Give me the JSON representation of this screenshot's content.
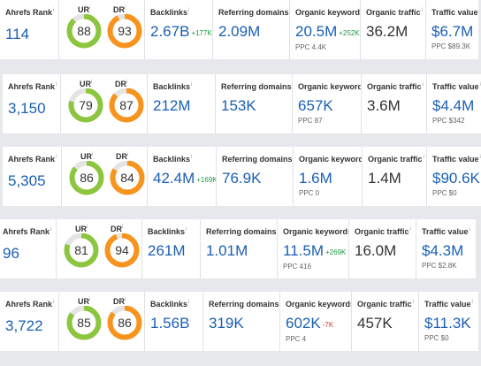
{
  "labels": {
    "ahrefs_rank": "Ahrefs Rank",
    "ur": "UR",
    "dr": "DR",
    "backlinks": "Backlinks",
    "referring_domains": "Referring domains",
    "organic_keywords": "Organic keywords",
    "organic_traffic": "Organic traffic",
    "traffic_value": "Traffic value",
    "info_mark": "i"
  },
  "colors": {
    "ur_ring": "#8cc63f",
    "dr_ring": "#f7941d",
    "ring_track": "#e4e4e4",
    "value_blue": "#1a5fb4",
    "delta_up": "#1a9a40",
    "delta_down": "#d9362b"
  },
  "rows": [
    {
      "rank": "114",
      "ur": "88",
      "dr": "93",
      "backlinks": "2.67B",
      "backlinks_delta": "+177K",
      "referring_domains": "2.09M",
      "organic_keywords": "20.5M",
      "keywords_delta": "+252K",
      "ppc_keywords": "PPC 4.4K",
      "organic_traffic": "36.2M",
      "traffic_value": "$6.7M",
      "ppc_value": "PPC $89.3K"
    },
    {
      "rank": "3,150",
      "ur": "79",
      "dr": "87",
      "backlinks": "212M",
      "backlinks_delta": "",
      "referring_domains": "153K",
      "organic_keywords": "657K",
      "keywords_delta": "",
      "ppc_keywords": "PPC 87",
      "organic_traffic": "3.6M",
      "traffic_value": "$4.4M",
      "ppc_value": "PPC $342"
    },
    {
      "rank": "5,305",
      "ur": "86",
      "dr": "84",
      "backlinks": "42.4M",
      "backlinks_delta": "+169K",
      "referring_domains": "76.9K",
      "organic_keywords": "1.6M",
      "keywords_delta": "",
      "ppc_keywords": "PPC 0",
      "organic_traffic": "1.4M",
      "traffic_value": "$90.6K",
      "ppc_value": "PPC $0"
    },
    {
      "rank": "96",
      "ur": "81",
      "dr": "94",
      "backlinks": "261M",
      "backlinks_delta": "",
      "referring_domains": "1.01M",
      "organic_keywords": "11.5M",
      "keywords_delta": "+269K",
      "ppc_keywords": "PPC 416",
      "organic_traffic": "16.0M",
      "traffic_value": "$4.3M",
      "ppc_value": "PPC $2.8K"
    },
    {
      "rank": "3,722",
      "ur": "85",
      "dr": "86",
      "backlinks": "1.56B",
      "backlinks_delta": "",
      "referring_domains": "319K",
      "organic_keywords": "602K",
      "keywords_delta": "-7K",
      "ppc_keywords": "PPC 4",
      "organic_traffic": "457K",
      "traffic_value": "$11.3K",
      "ppc_value": "PPC $0"
    }
  ]
}
